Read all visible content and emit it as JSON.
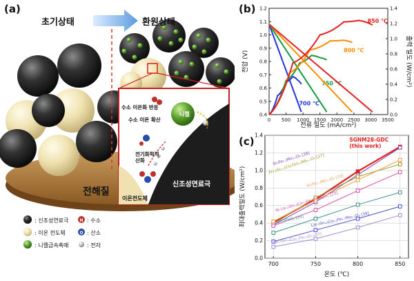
{
  "panels": {
    "a": "(a)",
    "b": "(b)",
    "c": "(c)"
  },
  "illustration": {
    "initial_state": "초기상태",
    "reduced_state": "환원상태",
    "electrolyte": "전해질",
    "electrode": "신조성연료극",
    "nickel": "니켈",
    "ion_conductor": "이온전도체",
    "hydrogen_oxidation": "수소 이온화 반응",
    "hydrogen_diffusion": "수소 이온 확산",
    "electrochemical_oxidation": "전기화학적\n산화",
    "legend": [
      {
        "symbol": "",
        "label": ": 신조성연료극",
        "color": "#3a3a3a"
      },
      {
        "symbol": "H",
        "label": ": 수소",
        "color": "#c0302a"
      },
      {
        "symbol": "",
        "label": ": 이온 전도체",
        "color": "#efe2b0"
      },
      {
        "symbol": "O",
        "label": ": 산소",
        "color": "#2a4ba8"
      },
      {
        "symbol": "",
        "label": ": 니켈금속촉매",
        "color": "#5aa02c"
      },
      {
        "symbol": "",
        "label": ": 전자",
        "color": "#b0b0b0"
      }
    ]
  },
  "chart_data": [
    {
      "type": "line",
      "xlabel": "전류 밀도 (mA/cm²)",
      "ylabel": "전압 (V)",
      "ylabel_right": "출력 밀도 (W/cm²)",
      "xlim": [
        0,
        3500
      ],
      "ylim": [
        0.4,
        1.2
      ],
      "ylim_right": [
        0,
        1.4
      ],
      "xticks": [
        0,
        500,
        1000,
        1500,
        2000,
        2500,
        3000,
        3500
      ],
      "yticks": [
        0.4,
        0.5,
        0.6,
        0.7,
        0.8,
        0.9,
        1.0,
        1.1,
        1.2
      ],
      "yticks_right": [
        0.0,
        0.2,
        0.4,
        0.6,
        0.8,
        1.0,
        1.2,
        1.4
      ],
      "series": [
        {
          "name": "700 ℃",
          "color": "#2233dd",
          "iv": [
            [
              0,
              1.08
            ],
            [
              950,
              0.42
            ]
          ],
          "power": [
            [
              0,
              0
            ],
            [
              250,
              0.25
            ],
            [
              500,
              0.43
            ],
            [
              700,
              0.5
            ],
            [
              850,
              0.45
            ],
            [
              950,
              0.4
            ]
          ]
        },
        {
          "name": "750 ℃",
          "color": "#139a3a",
          "iv": [
            [
              0,
              1.08
            ],
            [
              1700,
              0.42
            ]
          ],
          "power": [
            [
              0,
              0
            ],
            [
              500,
              0.45
            ],
            [
              900,
              0.68
            ],
            [
              1250,
              0.78
            ],
            [
              1500,
              0.75
            ],
            [
              1700,
              0.72
            ]
          ]
        },
        {
          "name": "800 ℃",
          "color": "#ff8c00",
          "iv": [
            [
              0,
              1.08
            ],
            [
              2450,
              0.42
            ]
          ],
          "power": [
            [
              0,
              0
            ],
            [
              600,
              0.55
            ],
            [
              1200,
              0.85
            ],
            [
              1800,
              0.97
            ],
            [
              2200,
              0.98
            ],
            [
              2450,
              0.95
            ]
          ]
        },
        {
          "name": "850 ℃",
          "color": "#e61e1e",
          "iv": [
            [
              0,
              1.08
            ],
            [
              3050,
              0.42
            ]
          ],
          "power": [
            [
              0,
              0
            ],
            [
              700,
              0.68
            ],
            [
              1500,
              1.05
            ],
            [
              2200,
              1.22
            ],
            [
              2650,
              1.24
            ],
            [
              3050,
              1.18
            ]
          ]
        }
      ]
    },
    {
      "type": "line",
      "xlabel": "온도 (℃)",
      "ylabel": "최대출력밀도 (W/cm²)",
      "x": [
        700,
        750,
        800,
        850
      ],
      "xlim": [
        690,
        860
      ],
      "ylim": [
        0.0,
        1.4
      ],
      "yticks": [
        0.0,
        0.2,
        0.4,
        0.6,
        0.8,
        1.0,
        1.2,
        1.4
      ],
      "series": [
        {
          "name": "SGNM28-GDC\n(this work)",
          "color": "#e61e1e",
          "values": [
            0.41,
            0.67,
            0.99,
            1.27
          ],
          "emphasis": true
        },
        {
          "name": "Sr₂Fe₁.₅Mo₀.₅O₆ [38]",
          "color": "#7b3fb5",
          "values": [
            0.38,
            0.64,
            0.95,
            1.26
          ]
        },
        {
          "name": "Pr₀.₈Sr₁.₂(Co,Fe)₀.₈Nb₀.₂O₄ [37]",
          "color": "#9a9a1a",
          "values": [
            0.39,
            0.69,
            0.93,
            1.07
          ]
        },
        {
          "name": "Sr₂Fe₁.₅Mo₀.₅O₆ [33]",
          "color": "#f09a4a",
          "values": [
            0.42,
            0.66,
            0.89,
            1.12
          ]
        },
        {
          "name": "Ni-La₀.₆Sr₀.₄Co₀.₂Fe₀.₈O₃-GDC [23]",
          "color": "#d44ea8",
          "values": [
            0.37,
            0.55,
            0.77,
            0.98
          ]
        },
        {
          "name": "SrLaFeO₄ [35]",
          "color": "#3e8f8f",
          "values": [
            0.29,
            0.45,
            0.61,
            0.75
          ]
        },
        {
          "name": "La₀.₄Sr₀.₆Co₀.₂Fe₀.₇Mo₀.₁O₃ [39]",
          "color": "#4d4dcc",
          "values": [
            0.19,
            0.32,
            0.45,
            0.59
          ]
        },
        {
          "name": "La₀.₆Sr₀.₄Co₀.₂Fe₀.₈O₃ [37]",
          "color": "#a08ad0",
          "values": [
            0.13,
            0.22,
            0.35,
            0.49
          ]
        }
      ]
    }
  ]
}
